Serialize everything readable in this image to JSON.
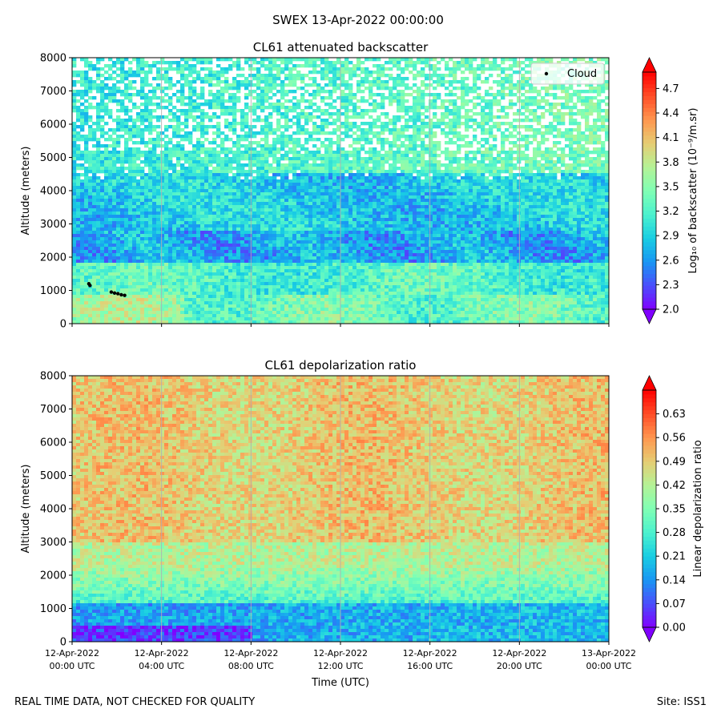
{
  "figure": {
    "suptitle": "SWEX 13-Apr-2022 00:00:00",
    "footer_left": "REAL TIME DATA, NOT CHECKED FOR QUALITY",
    "footer_right": "Site: ISS1"
  },
  "colors": {
    "colormap": [
      "#8000ff",
      "#4b4efc",
      "#1996f3",
      "#19cee3",
      "#4cf2ce",
      "#80ffb4",
      "#b4f296",
      "#e6cd73",
      "#ff964f",
      "#ff4d27",
      "#ff0000"
    ],
    "grid": "#b0b0b0",
    "cloud_marker": "#000000"
  },
  "chart_data": [
    {
      "type": "heatmap",
      "title": "CL61 attenuated backscatter",
      "ylabel": "Altitude (meters)",
      "ylim": [
        0,
        8000
      ],
      "yticks": [
        "0",
        "1000",
        "2000",
        "3000",
        "4000",
        "5000",
        "6000",
        "7000",
        "8000"
      ],
      "x": [
        "12-Apr-2022 00:00",
        "13-Apr-2022 00:00"
      ],
      "xticks_shown": false,
      "grid": "vertical",
      "legend": {
        "placement": "top-right",
        "entries": [
          {
            "label": "Cloud",
            "marker": "black dot"
          }
        ]
      },
      "cloud_points": [
        {
          "time_h": 0.75,
          "altitude": 1200
        },
        {
          "time_h": 0.8,
          "altitude": 1150
        },
        {
          "time_h": 1.75,
          "altitude": 950
        },
        {
          "time_h": 1.9,
          "altitude": 920
        },
        {
          "time_h": 2.05,
          "altitude": 900
        },
        {
          "time_h": 2.2,
          "altitude": 870
        },
        {
          "time_h": 2.35,
          "altitude": 850
        }
      ],
      "colorbar": {
        "label": "Log₁₀ of backscatter (10⁻⁹/m.sr)",
        "range": [
          2.0,
          4.9
        ],
        "ticks": [
          "2.0",
          "2.3",
          "2.6",
          "2.9",
          "3.2",
          "3.5",
          "3.8",
          "4.1",
          "4.4",
          "4.7"
        ],
        "extend": "both"
      }
    },
    {
      "type": "heatmap",
      "title": "CL61 depolarization ratio",
      "xlabel": "Time (UTC)",
      "ylabel": "Altitude (meters)",
      "ylim": [
        0,
        8000
      ],
      "yticks": [
        "0",
        "1000",
        "2000",
        "3000",
        "4000",
        "5000",
        "6000",
        "7000",
        "8000"
      ],
      "xticks": [
        {
          "date": "12-Apr-2022",
          "time": "00:00 UTC"
        },
        {
          "date": "12-Apr-2022",
          "time": "04:00 UTC"
        },
        {
          "date": "12-Apr-2022",
          "time": "08:00 UTC"
        },
        {
          "date": "12-Apr-2022",
          "time": "12:00 UTC"
        },
        {
          "date": "12-Apr-2022",
          "time": "16:00 UTC"
        },
        {
          "date": "12-Apr-2022",
          "time": "20:00 UTC"
        },
        {
          "date": "13-Apr-2022",
          "time": "00:00 UTC"
        }
      ],
      "grid": "vertical",
      "colorbar": {
        "label": "Linear depolarization ratio",
        "range": [
          0.0,
          0.7
        ],
        "ticks": [
          "0.00",
          "0.07",
          "0.14",
          "0.21",
          "0.28",
          "0.35",
          "0.42",
          "0.49",
          "0.56",
          "0.63"
        ],
        "extend": "both"
      }
    }
  ]
}
